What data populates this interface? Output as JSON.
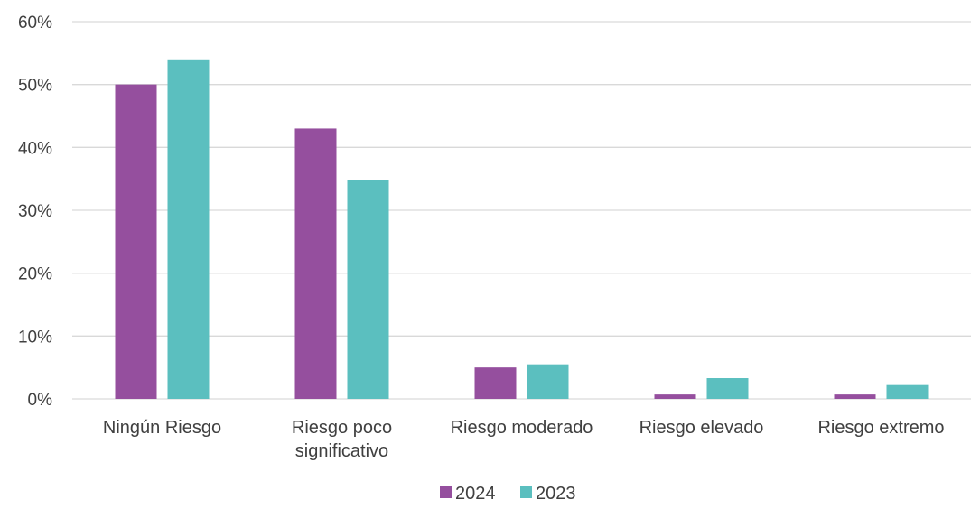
{
  "chart_data": {
    "type": "bar",
    "title": "",
    "xlabel": "",
    "ylabel": "",
    "categories": [
      [
        "Ningún Riesgo"
      ],
      [
        "Riesgo poco",
        "significativo"
      ],
      [
        "Riesgo moderado"
      ],
      [
        "Riesgo elevado"
      ],
      [
        "Riesgo extremo"
      ]
    ],
    "series": [
      {
        "name": "2024",
        "color": "#954f9e",
        "values": [
          50,
          43,
          5,
          0.7,
          0.7
        ]
      },
      {
        "name": "2023",
        "color": "#5bbfbf",
        "values": [
          54,
          34.8,
          5.5,
          3.3,
          2.2
        ]
      }
    ],
    "ylim": [
      0,
      60
    ],
    "yticks": [
      0,
      10,
      20,
      30,
      40,
      50,
      60
    ],
    "ytick_format": "percent",
    "grid": true,
    "legend_position": "bottom"
  }
}
